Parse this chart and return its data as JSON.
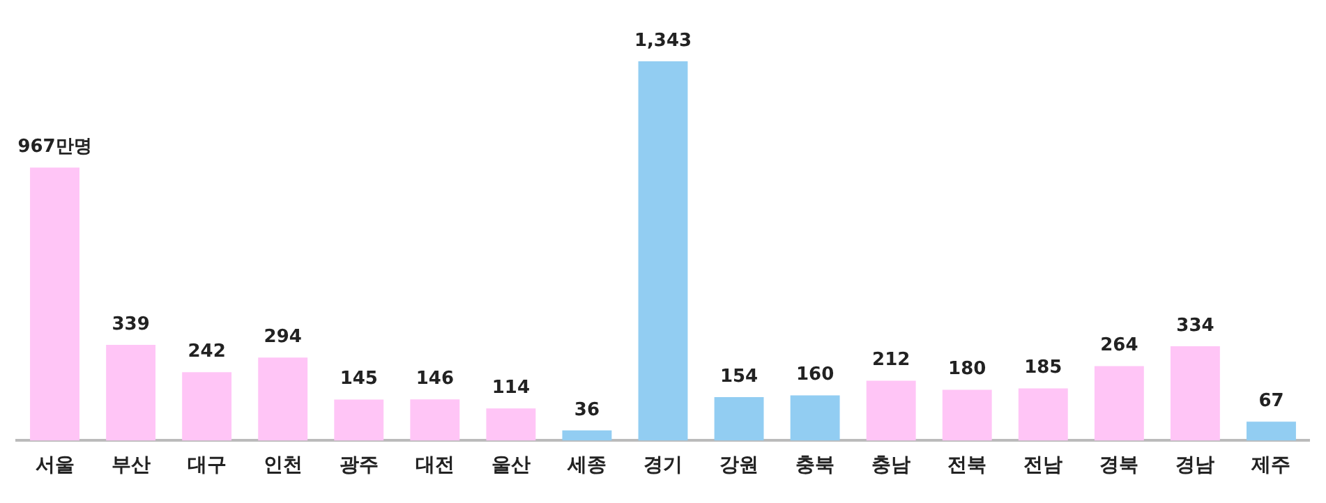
{
  "chart_data": {
    "type": "bar",
    "categories": [
      "서울",
      "부산",
      "대구",
      "인천",
      "광주",
      "대전",
      "울산",
      "세종",
      "경기",
      "강원",
      "충북",
      "충남",
      "전북",
      "전남",
      "경북",
      "경남",
      "제주"
    ],
    "values": [
      967,
      339,
      242,
      294,
      145,
      146,
      114,
      36,
      1343,
      154,
      160,
      212,
      180,
      185,
      264,
      334,
      67
    ],
    "colors": [
      "#ffc5f6",
      "#ffc5f6",
      "#ffc5f6",
      "#ffc5f6",
      "#ffc5f6",
      "#ffc5f6",
      "#ffc5f6",
      "#92cdf2",
      "#92cdf2",
      "#92cdf2",
      "#92cdf2",
      "#ffc5f6",
      "#ffc5f6",
      "#ffc5f6",
      "#ffc5f6",
      "#ffc5f6",
      "#92cdf2"
    ],
    "value_labels": [
      "967만명",
      "339",
      "242",
      "294",
      "145",
      "146",
      "114",
      "36",
      "1,343",
      "154",
      "160",
      "212",
      "180",
      "185",
      "264",
      "334",
      "67"
    ],
    "grid": false,
    "legend": false
  }
}
